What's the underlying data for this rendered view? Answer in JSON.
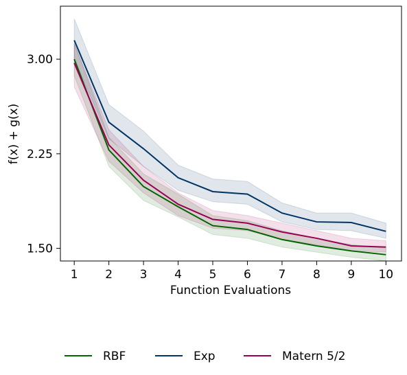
{
  "chart_data": {
    "type": "line",
    "title": "",
    "xlabel": "Function Evaluations",
    "ylabel": "f(x) + g(x)",
    "x": [
      1,
      2,
      3,
      4,
      5,
      6,
      7,
      8,
      9,
      10
    ],
    "xticks": [
      1,
      2,
      3,
      4,
      5,
      6,
      7,
      8,
      9,
      10
    ],
    "xtick_labels": [
      "1",
      "2",
      "3",
      "4",
      "5",
      "6",
      "7",
      "8",
      "9",
      "10"
    ],
    "yticks": [
      1.5,
      2.25,
      3.0
    ],
    "ytick_labels": [
      "1.50",
      "2.25",
      "3.00"
    ],
    "xlim": [
      0.6,
      10.45
    ],
    "ylim": [
      1.4,
      3.42
    ],
    "grid": false,
    "legend_position": "bottom-center",
    "series": [
      {
        "name": "RBF",
        "color": "#006400",
        "values": [
          3.0,
          2.28,
          1.99,
          1.83,
          1.68,
          1.65,
          1.57,
          1.52,
          1.48,
          1.45
        ],
        "lower": [
          2.87,
          2.15,
          1.88,
          1.75,
          1.61,
          1.58,
          1.51,
          1.47,
          1.43,
          1.4
        ],
        "upper": [
          3.13,
          2.38,
          2.09,
          1.93,
          1.76,
          1.72,
          1.64,
          1.58,
          1.53,
          1.5
        ]
      },
      {
        "name": "Exp",
        "color": "#003366",
        "values": [
          3.15,
          2.5,
          2.29,
          2.06,
          1.95,
          1.93,
          1.78,
          1.71,
          1.705,
          1.635
        ],
        "lower": [
          3.0,
          2.37,
          2.15,
          1.96,
          1.87,
          1.85,
          1.71,
          1.65,
          1.64,
          1.58
        ],
        "upper": [
          3.32,
          2.64,
          2.43,
          2.16,
          2.05,
          2.03,
          1.86,
          1.78,
          1.78,
          1.7
        ]
      },
      {
        "name": "Matern 5/2",
        "color": "#990055",
        "values": [
          2.97,
          2.32,
          2.04,
          1.85,
          1.73,
          1.7,
          1.63,
          1.58,
          1.52,
          1.51
        ],
        "lower": [
          2.78,
          2.19,
          1.94,
          1.76,
          1.66,
          1.64,
          1.57,
          1.53,
          1.48,
          1.47
        ],
        "upper": [
          3.12,
          2.44,
          2.15,
          1.94,
          1.8,
          1.76,
          1.7,
          1.64,
          1.58,
          1.56
        ]
      }
    ]
  }
}
